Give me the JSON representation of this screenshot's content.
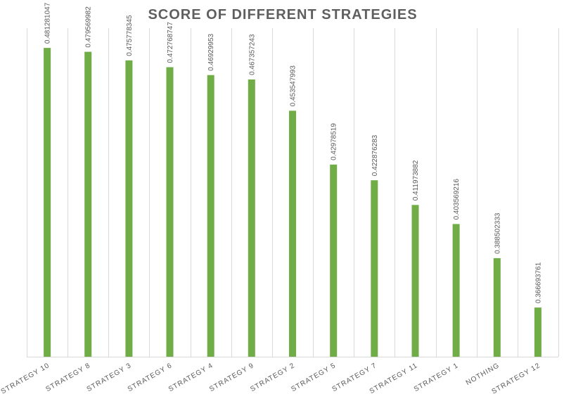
{
  "chart_data": {
    "type": "bar",
    "title": "SCORE OF DIFFERENT STRATEGIES",
    "xlabel": "",
    "ylabel": "",
    "categories": [
      "STRATEGY 10",
      "STRATEGY 8",
      "STRATEGY 3",
      "STRATEGY 6",
      "STRATEGY 4",
      "STRATEGY 9",
      "STRATEGY 2",
      "STRATEGY 5",
      "STRATEGY 7",
      "STRATEGY 11",
      "STRATEGY 1",
      "NOTHING",
      "STRATEGY 12"
    ],
    "values": [
      0.481281047,
      0.479569982,
      0.475778345,
      0.472768747,
      0.46929953,
      0.467357243,
      0.453547993,
      0.42978519,
      0.422876283,
      0.411973882,
      0.403569216,
      0.388502333,
      0.366693761
    ],
    "data_labels": [
      "0.481281047",
      "0.479569982",
      "0.475778345",
      "0.472768747",
      "0.46929953",
      "0.467357243",
      "0.453547993",
      "0.42978519",
      "0.422876283",
      "0.411973882",
      "0.403569216",
      "0.388502333",
      "0.366693761"
    ],
    "ylim": [
      0.345,
      0.49
    ],
    "grid": true,
    "legend": "none",
    "colors": {
      "bar": "#70ad47",
      "title": "#5f5f5f",
      "labels": "#595959",
      "grid": "#d9d9d9"
    }
  }
}
